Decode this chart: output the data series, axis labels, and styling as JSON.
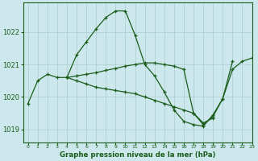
{
  "title": "Graphe pression niveau de la mer (hPa)",
  "bg_color": "#cce8ec",
  "grid_color": "#aacccc",
  "line_color": "#1a5c1a",
  "xlim": [
    -0.5,
    23
  ],
  "ylim": [
    1018.6,
    1022.9
  ],
  "yticks": [
    1019,
    1020,
    1021,
    1022
  ],
  "xticks": [
    0,
    1,
    2,
    3,
    4,
    5,
    6,
    7,
    8,
    9,
    10,
    11,
    12,
    13,
    14,
    15,
    16,
    17,
    18,
    19,
    20,
    21,
    22,
    23
  ],
  "series": [
    {
      "x": [
        0,
        1,
        2,
        3,
        4,
        5,
        6,
        7,
        8,
        9,
        10,
        11,
        12,
        13,
        14,
        15,
        16,
        17,
        18,
        19,
        20,
        21,
        22,
        23
      ],
      "y": [
        1019.8,
        1020.5,
        1020.7,
        1020.6,
        1020.6,
        1021.3,
        1021.7,
        1022.1,
        1022.45,
        1022.65,
        1022.65,
        1021.9,
        1021.0,
        1020.65,
        1020.15,
        1019.6,
        1019.25,
        1019.15,
        1019.1,
        1019.45,
        1019.95,
        1020.85,
        1021.1,
        1021.2
      ]
    },
    {
      "x": [
        4,
        5,
        6,
        7,
        8,
        9,
        10,
        11,
        12,
        13,
        14,
        15,
        16,
        17,
        18,
        19,
        20,
        21
      ],
      "y": [
        1020.6,
        1020.65,
        1020.7,
        1020.75,
        1020.82,
        1020.88,
        1020.95,
        1021.0,
        1021.05,
        1021.05,
        1021.0,
        1020.95,
        1020.85,
        1019.5,
        1019.15,
        1019.4,
        1019.95,
        1021.1
      ]
    },
    {
      "x": [
        4,
        5,
        6,
        7,
        8,
        9,
        10,
        11,
        12,
        13,
        14,
        15,
        16,
        17,
        18,
        19
      ],
      "y": [
        1020.6,
        1020.5,
        1020.4,
        1020.3,
        1020.25,
        1020.2,
        1020.15,
        1020.1,
        1020.0,
        1019.9,
        1019.8,
        1019.7,
        1019.6,
        1019.5,
        1019.2,
        1019.35
      ]
    }
  ]
}
